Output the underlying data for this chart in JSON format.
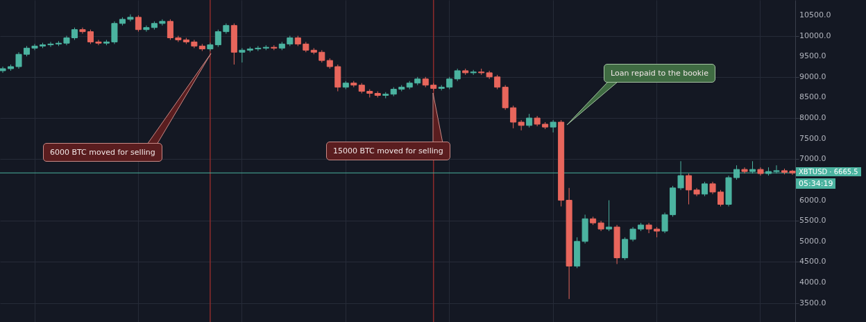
{
  "chart_data": {
    "type": "candlestick",
    "categories": [
      null,
      null,
      null,
      null,
      null,
      null,
      null,
      null,
      null,
      null,
      null,
      null,
      null,
      null,
      null,
      null,
      null,
      null,
      null,
      null,
      null,
      null,
      null,
      null,
      null,
      null,
      null,
      null,
      null,
      null,
      null,
      null,
      null,
      null,
      null,
      null,
      null,
      null,
      null,
      null,
      null,
      null,
      null,
      null,
      null,
      null,
      null,
      null,
      null,
      null,
      null,
      null,
      null,
      null,
      null,
      null,
      null,
      null,
      null,
      null,
      null,
      null,
      null,
      null,
      null,
      null,
      null,
      null,
      null,
      null,
      null,
      null,
      null,
      null,
      null,
      null,
      null,
      null,
      null,
      null,
      null,
      null,
      null,
      null,
      null,
      null,
      null,
      null,
      null,
      null,
      null,
      null,
      null,
      null,
      null,
      null,
      null,
      null,
      null,
      null
    ],
    "ohlc": [
      [
        9150,
        9250,
        9100,
        9200
      ],
      [
        9200,
        9300,
        9150,
        9250
      ],
      [
        9250,
        9600,
        9200,
        9550
      ],
      [
        9550,
        9750,
        9500,
        9700
      ],
      [
        9700,
        9800,
        9650,
        9750
      ],
      [
        9750,
        9830,
        9700,
        9780
      ],
      [
        9780,
        9850,
        9730,
        9800
      ],
      [
        9800,
        9870,
        9750,
        9820
      ],
      [
        9820,
        10000,
        9770,
        9950
      ],
      [
        9950,
        10200,
        9900,
        10150
      ],
      [
        10150,
        10200,
        10050,
        10100
      ],
      [
        10100,
        10150,
        9800,
        9850
      ],
      [
        9850,
        9900,
        9770,
        9820
      ],
      [
        9820,
        9900,
        9770,
        9850
      ],
      [
        9850,
        10350,
        9800,
        10300
      ],
      [
        10300,
        10450,
        10250,
        10400
      ],
      [
        10400,
        10520,
        10350,
        10450
      ],
      [
        10450,
        10500,
        10100,
        10150
      ],
      [
        10150,
        10250,
        10100,
        10200
      ],
      [
        10200,
        10350,
        10150,
        10300
      ],
      [
        10300,
        10400,
        10250,
        10350
      ],
      [
        10350,
        10400,
        9900,
        9950
      ],
      [
        9950,
        10000,
        9850,
        9900
      ],
      [
        9900,
        9950,
        9800,
        9850
      ],
      [
        9850,
        9900,
        9700,
        9750
      ],
      [
        9750,
        9800,
        9630,
        9680
      ],
      [
        9680,
        9830,
        9630,
        9780
      ],
      [
        9780,
        10150,
        9730,
        10100
      ],
      [
        10100,
        10300,
        10050,
        10250
      ],
      [
        10250,
        10300,
        9300,
        9600
      ],
      [
        9600,
        9700,
        9350,
        9650
      ],
      [
        9650,
        9730,
        9600,
        9680
      ],
      [
        9680,
        9750,
        9630,
        9700
      ],
      [
        9700,
        9770,
        9650,
        9720
      ],
      [
        9720,
        9770,
        9650,
        9700
      ],
      [
        9700,
        9850,
        9650,
        9800
      ],
      [
        9800,
        10000,
        9750,
        9950
      ],
      [
        9950,
        10000,
        9750,
        9800
      ],
      [
        9800,
        9850,
        9600,
        9650
      ],
      [
        9650,
        9700,
        9550,
        9600
      ],
      [
        9600,
        9650,
        9350,
        9400
      ],
      [
        9400,
        9450,
        9200,
        9250
      ],
      [
        9250,
        9300,
        8650,
        8750
      ],
      [
        8750,
        8900,
        8700,
        8850
      ],
      [
        8850,
        8900,
        8750,
        8800
      ],
      [
        8800,
        8850,
        8600,
        8650
      ],
      [
        8650,
        8700,
        8500,
        8600
      ],
      [
        8600,
        8650,
        8500,
        8550
      ],
      [
        8550,
        8630,
        8480,
        8580
      ],
      [
        8580,
        8750,
        8530,
        8700
      ],
      [
        8700,
        8800,
        8650,
        8750
      ],
      [
        8750,
        8900,
        8700,
        8850
      ],
      [
        8850,
        9000,
        8800,
        8950
      ],
      [
        8950,
        9000,
        8750,
        8800
      ],
      [
        8800,
        8850,
        8670,
        8720
      ],
      [
        8720,
        8800,
        8670,
        8750
      ],
      [
        8750,
        9000,
        8700,
        8950
      ],
      [
        8950,
        9200,
        8900,
        9150
      ],
      [
        9150,
        9200,
        9050,
        9100
      ],
      [
        9100,
        9170,
        9050,
        9120
      ],
      [
        9120,
        9200,
        9050,
        9100
      ],
      [
        9100,
        9150,
        8950,
        9000
      ],
      [
        9000,
        9050,
        8700,
        8750
      ],
      [
        8750,
        8800,
        8200,
        8250
      ],
      [
        8250,
        8300,
        7750,
        7900
      ],
      [
        7900,
        7950,
        7700,
        7820
      ],
      [
        7820,
        8100,
        7770,
        8000
      ],
      [
        8000,
        8050,
        7800,
        7850
      ],
      [
        7850,
        7900,
        7730,
        7780
      ],
      [
        7780,
        7950,
        7650,
        7900
      ],
      [
        7900,
        7950,
        5850,
        6000
      ],
      [
        6000,
        6300,
        3600,
        4400
      ],
      [
        4400,
        5100,
        4350,
        5000
      ],
      [
        5000,
        5650,
        4950,
        5550
      ],
      [
        5550,
        5600,
        5400,
        5450
      ],
      [
        5450,
        5500,
        5250,
        5300
      ],
      [
        5300,
        6000,
        5250,
        5350
      ],
      [
        5350,
        5400,
        4450,
        4600
      ],
      [
        4600,
        5100,
        4550,
        5050
      ],
      [
        5050,
        5350,
        5000,
        5300
      ],
      [
        5300,
        5450,
        5250,
        5400
      ],
      [
        5400,
        5450,
        5200,
        5300
      ],
      [
        5300,
        5350,
        5100,
        5250
      ],
      [
        5250,
        5700,
        5200,
        5650
      ],
      [
        5650,
        6350,
        5600,
        6300
      ],
      [
        6300,
        6950,
        6250,
        6600
      ],
      [
        6600,
        6650,
        5900,
        6250
      ],
      [
        6250,
        6300,
        6100,
        6150
      ],
      [
        6150,
        6450,
        6100,
        6400
      ],
      [
        6400,
        6450,
        6150,
        6200
      ],
      [
        6200,
        6250,
        5850,
        5900
      ],
      [
        5900,
        6600,
        5850,
        6550
      ],
      [
        6550,
        6850,
        6500,
        6750
      ],
      [
        6750,
        6800,
        6650,
        6700
      ],
      [
        6700,
        6950,
        6650,
        6750
      ],
      [
        6750,
        6800,
        6600,
        6650
      ],
      [
        6650,
        6800,
        6600,
        6700
      ],
      [
        6700,
        6850,
        6650,
        6720
      ],
      [
        6720,
        6770,
        6630,
        6680
      ],
      [
        6710,
        6740,
        6620,
        6665.5
      ]
    ],
    "ylim": [
      3040,
      10870
    ],
    "yticks": [
      {
        "value": 3500,
        "label": "3500.0"
      },
      {
        "value": 4000,
        "label": "4000.0"
      },
      {
        "value": 4500,
        "label": "4500.0"
      },
      {
        "value": 5000,
        "label": "5000.0"
      },
      {
        "value": 5500,
        "label": "5500.0"
      },
      {
        "value": 6000,
        "label": "6000.0"
      },
      {
        "value": 7000,
        "label": "7000.0"
      },
      {
        "value": 7500,
        "label": "7500.0"
      },
      {
        "value": 8000,
        "label": "8000.0"
      },
      {
        "value": 8500,
        "label": "8500.0"
      },
      {
        "value": 9000,
        "label": "9000.0"
      },
      {
        "value": 9500,
        "label": "9500.0"
      },
      {
        "value": 10000,
        "label": "10000.0"
      },
      {
        "value": 10500,
        "label": "10500.0"
      }
    ],
    "tick_labels": "y",
    "grid": true,
    "ref_lines": [
      {
        "axis": "y",
        "value": 6665.5,
        "label": "XBTUSD · 6665.5",
        "color": "#4bb3a0"
      }
    ],
    "annotations": [
      "6000 BTC moved for selling",
      "15000 BTC moved for selling",
      "Loan repaid to the bookie",
      "05:34:19"
    ]
  }
}
